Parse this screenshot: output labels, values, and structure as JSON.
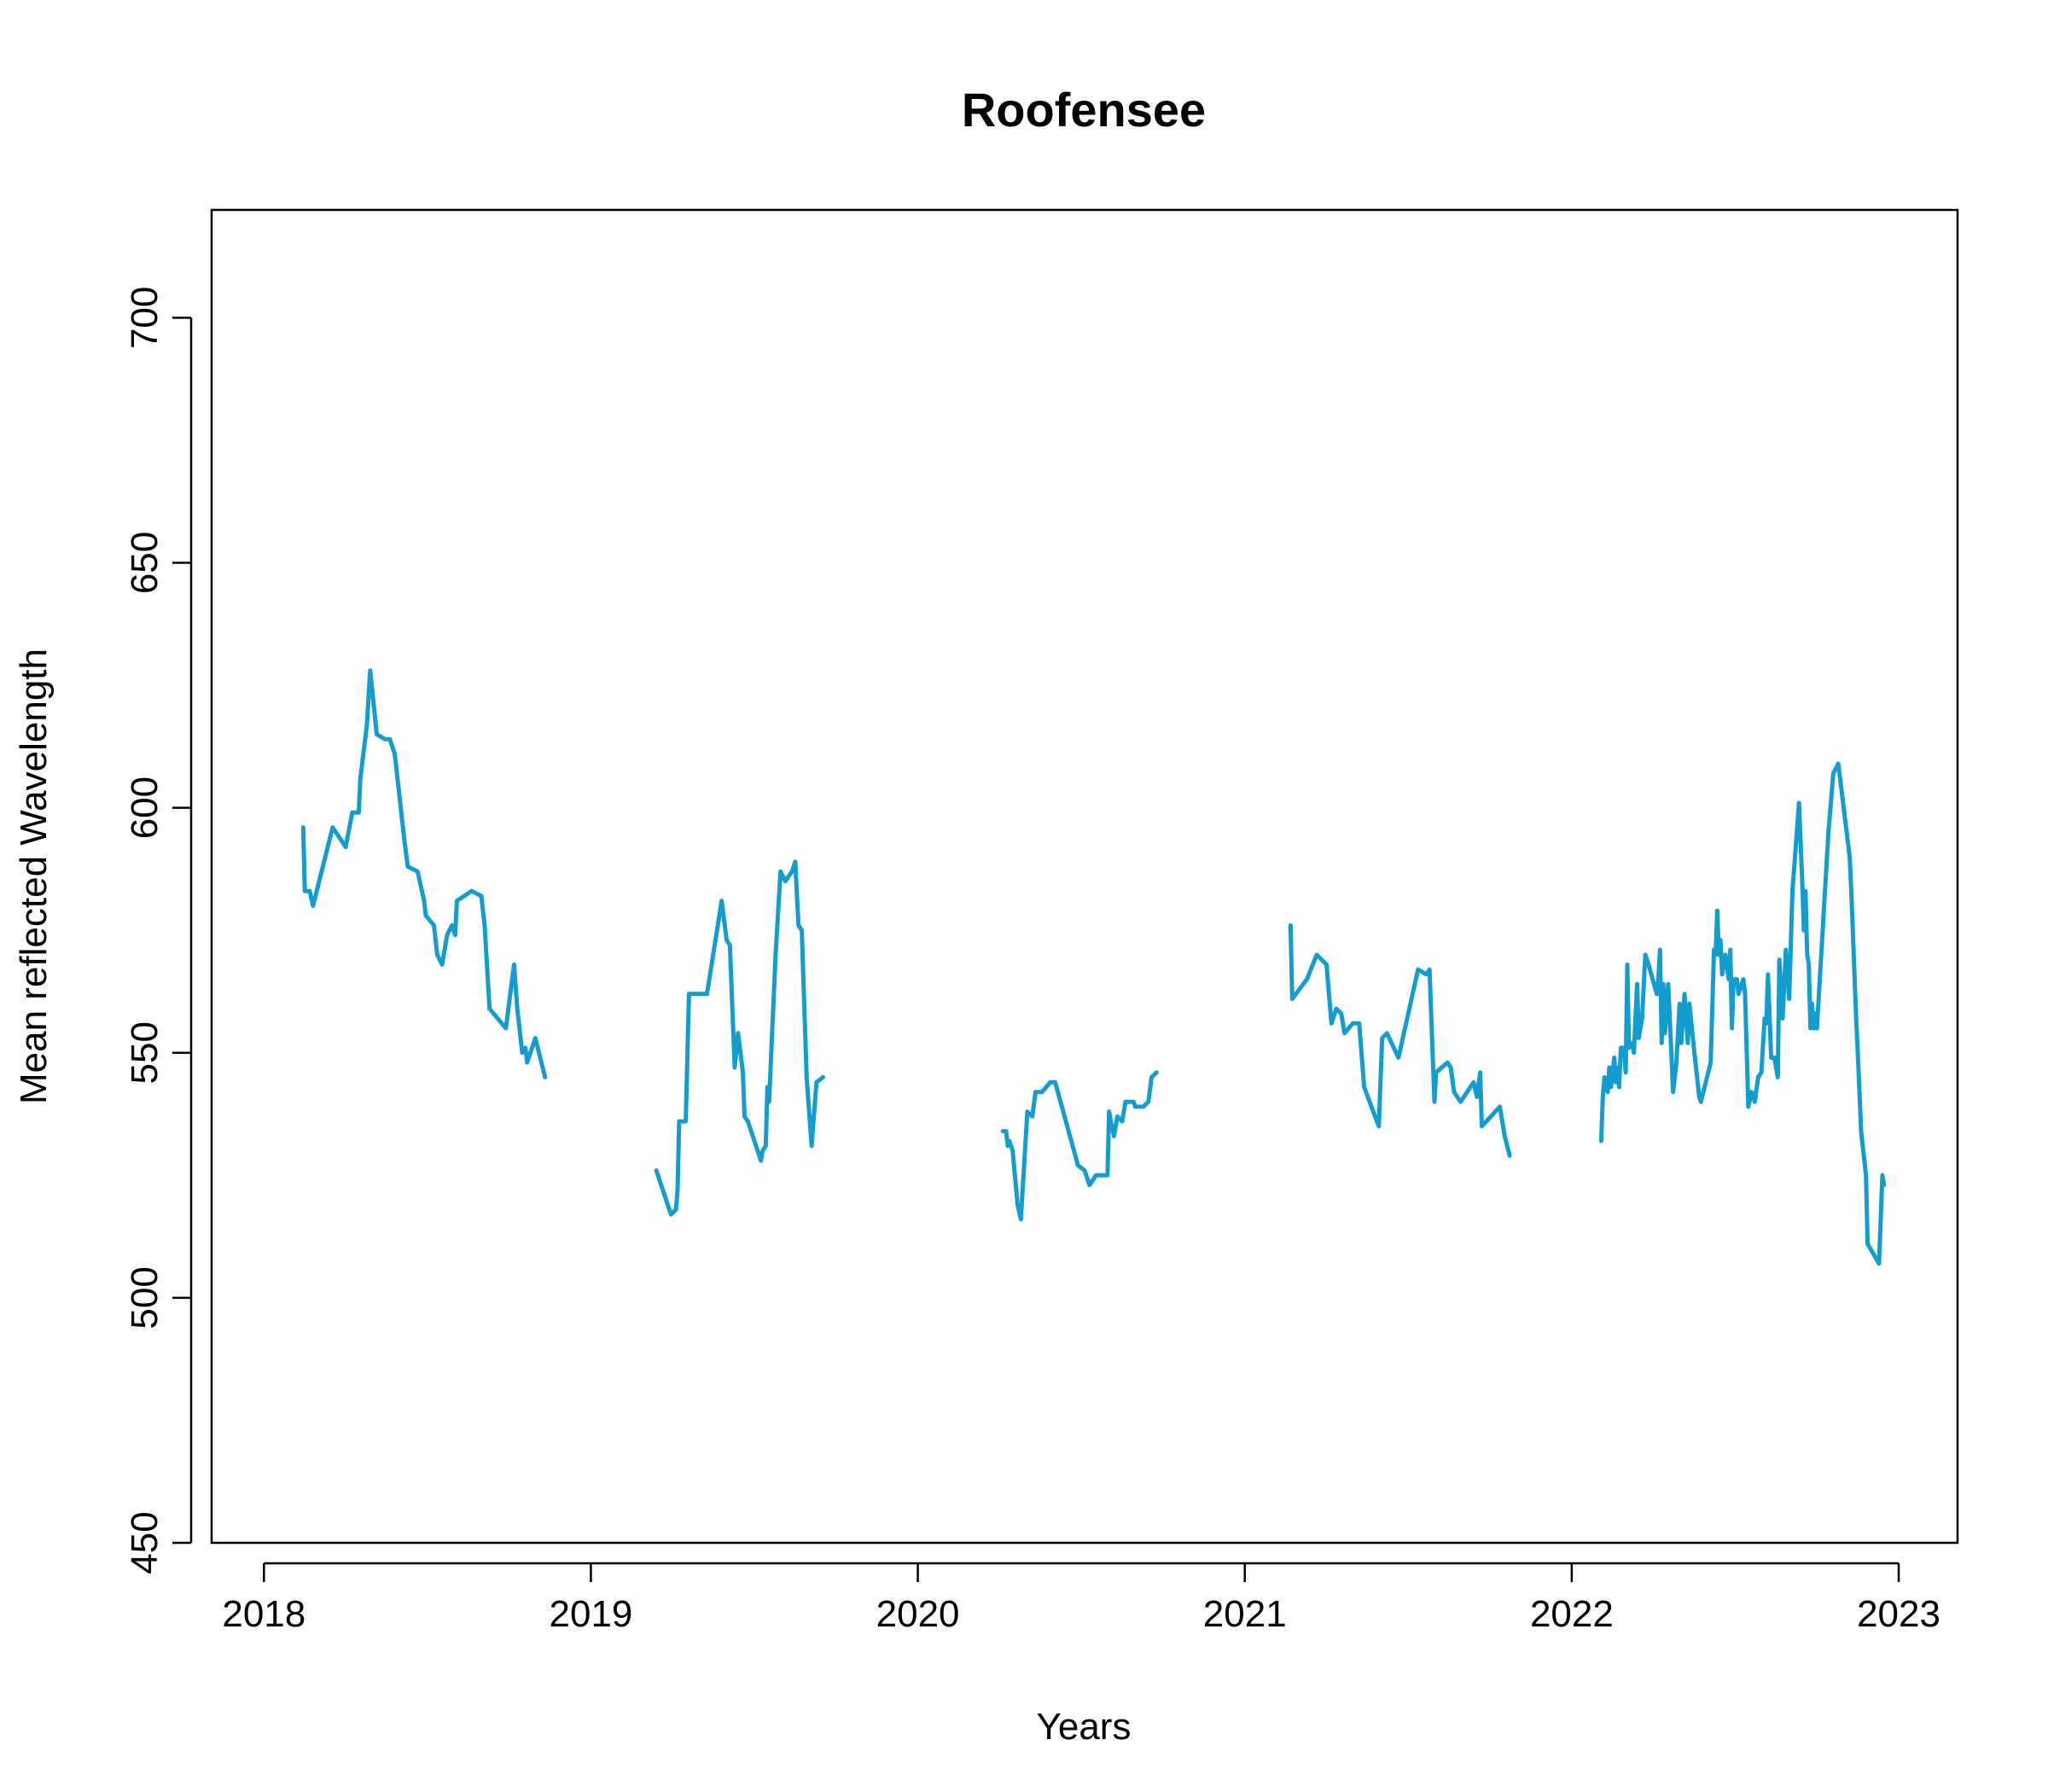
{
  "chart_data": {
    "type": "line",
    "title": "Roofensee",
    "xlabel": "Years",
    "ylabel": "Mean reflected Wavelength",
    "xlim": [
      2017.84,
      2023.18
    ],
    "ylim": [
      450,
      722
    ],
    "x_ticks": [
      2018,
      2019,
      2020,
      2021,
      2022,
      2023
    ],
    "y_ticks": [
      450,
      500,
      550,
      600,
      650,
      700
    ],
    "grid": false,
    "legend": "none",
    "color": "#139DCF",
    "series": [
      {
        "values": [
          [
            2018.12,
            596
          ],
          [
            2018.125,
            583
          ],
          [
            2018.14,
            583
          ],
          [
            2018.15,
            580
          ],
          [
            2018.21,
            596
          ],
          [
            2018.25,
            592
          ],
          [
            2018.27,
            599
          ],
          [
            2018.29,
            599
          ],
          [
            2018.295,
            606
          ],
          [
            2018.315,
            617
          ],
          [
            2018.325,
            628
          ],
          [
            2018.345,
            615
          ],
          [
            2018.37,
            614
          ],
          [
            2018.385,
            614
          ],
          [
            2018.4,
            611
          ],
          [
            2018.43,
            593
          ],
          [
            2018.44,
            588
          ],
          [
            2018.47,
            587
          ],
          [
            2018.49,
            581
          ],
          [
            2018.495,
            578
          ],
          [
            2018.52,
            576
          ],
          [
            2018.53,
            570
          ],
          [
            2018.545,
            568
          ],
          [
            2018.56,
            574
          ],
          [
            2018.575,
            576
          ],
          [
            2018.585,
            574
          ],
          [
            2018.59,
            581
          ],
          [
            2018.635,
            583
          ],
          [
            2018.665,
            582
          ],
          [
            2018.675,
            576
          ],
          [
            2018.69,
            559
          ],
          [
            2018.74,
            555
          ],
          [
            2018.765,
            568
          ],
          [
            2018.775,
            559
          ],
          [
            2018.79,
            550
          ],
          [
            2018.8,
            551
          ],
          [
            2018.805,
            548
          ],
          [
            2018.82,
            551
          ],
          [
            2018.83,
            553
          ],
          [
            2018.86,
            545
          ]
        ]
      },
      {
        "values": [
          [
            2019.2,
            526
          ],
          [
            2019.245,
            517
          ],
          [
            2019.26,
            518
          ],
          [
            2019.265,
            522
          ],
          [
            2019.27,
            536
          ],
          [
            2019.29,
            536
          ],
          [
            2019.3,
            562
          ],
          [
            2019.355,
            562
          ],
          [
            2019.4,
            581
          ],
          [
            2019.415,
            573
          ],
          [
            2019.425,
            572
          ],
          [
            2019.44,
            547
          ],
          [
            2019.45,
            554
          ],
          [
            2019.465,
            546
          ],
          [
            2019.47,
            537
          ],
          [
            2019.48,
            536
          ],
          [
            2019.52,
            528
          ],
          [
            2019.525,
            530
          ],
          [
            2019.535,
            531
          ],
          [
            2019.54,
            543
          ],
          [
            2019.545,
            540
          ],
          [
            2019.565,
            570
          ],
          [
            2019.58,
            587
          ],
          [
            2019.595,
            585
          ],
          [
            2019.615,
            587
          ],
          [
            2019.625,
            589
          ],
          [
            2019.635,
            576
          ],
          [
            2019.645,
            575
          ],
          [
            2019.66,
            545
          ],
          [
            2019.675,
            531
          ],
          [
            2019.69,
            544
          ],
          [
            2019.71,
            545
          ]
        ]
      },
      {
        "values": [
          [
            2020.26,
            534
          ],
          [
            2020.27,
            534
          ],
          [
            2020.275,
            531
          ],
          [
            2020.28,
            532
          ],
          [
            2020.29,
            530
          ],
          [
            2020.305,
            519
          ],
          [
            2020.315,
            516
          ],
          [
            2020.335,
            538
          ],
          [
            2020.35,
            537
          ],
          [
            2020.36,
            542
          ],
          [
            2020.38,
            542
          ],
          [
            2020.405,
            544
          ],
          [
            2020.42,
            544
          ],
          [
            2020.49,
            527
          ],
          [
            2020.51,
            526
          ],
          [
            2020.525,
            523
          ],
          [
            2020.545,
            525
          ],
          [
            2020.57,
            525
          ],
          [
            2020.58,
            525
          ],
          [
            2020.585,
            538
          ],
          [
            2020.59,
            536
          ],
          [
            2020.6,
            533
          ],
          [
            2020.61,
            537
          ],
          [
            2020.625,
            536
          ],
          [
            2020.635,
            540
          ],
          [
            2020.66,
            540
          ],
          [
            2020.665,
            539
          ],
          [
            2020.69,
            539
          ],
          [
            2020.705,
            540
          ],
          [
            2020.715,
            545
          ],
          [
            2020.73,
            546
          ]
        ]
      },
      {
        "values": [
          [
            2021.14,
            576
          ],
          [
            2021.145,
            561
          ],
          [
            2021.19,
            565
          ],
          [
            2021.22,
            570
          ],
          [
            2021.25,
            568
          ],
          [
            2021.265,
            556
          ],
          [
            2021.28,
            559
          ],
          [
            2021.295,
            558
          ],
          [
            2021.305,
            554
          ],
          [
            2021.33,
            556
          ],
          [
            2021.35,
            556
          ],
          [
            2021.365,
            543
          ],
          [
            2021.41,
            535
          ],
          [
            2021.42,
            553
          ],
          [
            2021.435,
            554
          ],
          [
            2021.47,
            549
          ],
          [
            2021.53,
            567
          ],
          [
            2021.555,
            566
          ],
          [
            2021.565,
            567
          ],
          [
            2021.58,
            540
          ],
          [
            2021.585,
            546
          ],
          [
            2021.62,
            548
          ],
          [
            2021.63,
            547
          ],
          [
            2021.64,
            542
          ],
          [
            2021.66,
            540
          ],
          [
            2021.7,
            544
          ],
          [
            2021.71,
            541
          ],
          [
            2021.72,
            546
          ],
          [
            2021.725,
            535
          ],
          [
            2021.78,
            539
          ],
          [
            2021.795,
            533
          ],
          [
            2021.81,
            529
          ]
        ]
      },
      {
        "values": [
          [
            2022.09,
            532
          ],
          [
            2022.095,
            541
          ],
          [
            2022.1,
            545
          ],
          [
            2022.11,
            542
          ],
          [
            2022.115,
            547
          ],
          [
            2022.12,
            543
          ],
          [
            2022.13,
            549
          ],
          [
            2022.135,
            544
          ],
          [
            2022.14,
            547
          ],
          [
            2022.145,
            543
          ],
          [
            2022.15,
            551
          ],
          [
            2022.16,
            551
          ],
          [
            2022.165,
            546
          ],
          [
            2022.17,
            568
          ],
          [
            2022.175,
            551
          ],
          [
            2022.185,
            552
          ],
          [
            2022.19,
            550
          ],
          [
            2022.2,
            564
          ],
          [
            2022.205,
            553
          ],
          [
            2022.215,
            557
          ],
          [
            2022.225,
            570
          ],
          [
            2022.235,
            568
          ],
          [
            2022.26,
            562
          ],
          [
            2022.265,
            565
          ],
          [
            2022.27,
            571
          ],
          [
            2022.275,
            552
          ],
          [
            2022.28,
            564
          ],
          [
            2022.285,
            554
          ],
          [
            2022.295,
            564
          ],
          [
            2022.31,
            542
          ],
          [
            2022.32,
            548
          ],
          [
            2022.33,
            560
          ],
          [
            2022.335,
            552
          ],
          [
            2022.345,
            562
          ],
          [
            2022.355,
            552
          ],
          [
            2022.36,
            560
          ],
          [
            2022.375,
            550
          ],
          [
            2022.39,
            541
          ],
          [
            2022.395,
            540
          ],
          [
            2022.41,
            544
          ],
          [
            2022.425,
            548
          ],
          [
            2022.435,
            571
          ],
          [
            2022.44,
            570
          ],
          [
            2022.445,
            579
          ],
          [
            2022.45,
            570
          ],
          [
            2022.455,
            573
          ],
          [
            2022.46,
            566
          ],
          [
            2022.47,
            570
          ],
          [
            2022.48,
            565
          ],
          [
            2022.485,
            571
          ],
          [
            2022.49,
            555
          ],
          [
            2022.495,
            565
          ],
          [
            2022.505,
            565
          ],
          [
            2022.51,
            562
          ],
          [
            2022.52,
            564
          ],
          [
            2022.525,
            565
          ],
          [
            2022.53,
            562
          ],
          [
            2022.54,
            539
          ],
          [
            2022.55,
            542
          ],
          [
            2022.56,
            540
          ],
          [
            2022.57,
            545
          ],
          [
            2022.58,
            546
          ],
          [
            2022.59,
            557
          ],
          [
            2022.595,
            556
          ],
          [
            2022.6,
            566
          ],
          [
            2022.61,
            549
          ],
          [
            2022.62,
            549
          ],
          [
            2022.63,
            545
          ],
          [
            2022.635,
            569
          ],
          [
            2022.645,
            557
          ],
          [
            2022.655,
            571
          ],
          [
            2022.665,
            561
          ],
          [
            2022.675,
            583
          ],
          [
            2022.695,
            601
          ],
          [
            2022.705,
            585
          ],
          [
            2022.71,
            575
          ],
          [
            2022.715,
            583
          ],
          [
            2022.72,
            570
          ],
          [
            2022.725,
            568
          ],
          [
            2022.73,
            555
          ],
          [
            2022.735,
            560
          ],
          [
            2022.74,
            555
          ],
          [
            2022.745,
            558
          ],
          [
            2022.75,
            555
          ],
          [
            2022.755,
            561
          ],
          [
            2022.785,
            595
          ],
          [
            2022.8,
            607
          ],
          [
            2022.815,
            609
          ],
          [
            2022.85,
            590
          ],
          [
            2022.855,
            583
          ],
          [
            2022.87,
            557
          ],
          [
            2022.875,
            550
          ],
          [
            2022.885,
            534
          ],
          [
            2022.9,
            525
          ],
          [
            2022.905,
            511
          ],
          [
            2022.94,
            507
          ],
          [
            2022.95,
            525
          ],
          [
            2022.955,
            523
          ]
        ]
      }
    ]
  }
}
